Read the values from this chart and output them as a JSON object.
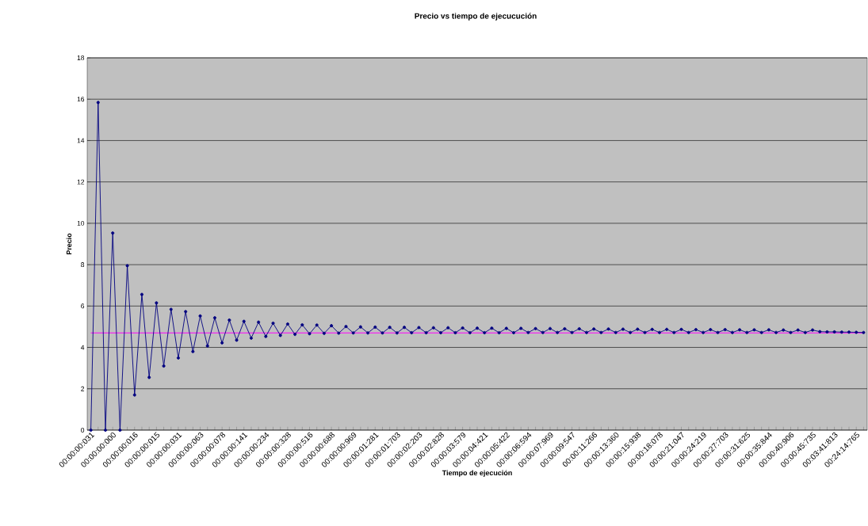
{
  "chart_data": {
    "type": "line",
    "title": "Precio vs tiempo de ejecucución",
    "xlabel": "Tiempo de ejecución",
    "ylabel": "Precio",
    "categories": [
      "00:00:00:031",
      null,
      null,
      "00:00:00:000",
      null,
      null,
      "00:00:00:016",
      null,
      null,
      "00:00:00:015",
      null,
      null,
      "00:00:00:031",
      null,
      null,
      "00:00:00:063",
      null,
      null,
      "00:00:00:078",
      null,
      null,
      "00:00:00:141",
      null,
      null,
      "00:00:00:234",
      null,
      null,
      "00:00:00:328",
      null,
      null,
      "00:00:00:516",
      null,
      null,
      "00:00:00:688",
      null,
      null,
      "00:00:00:969",
      null,
      null,
      "00:00:01:281",
      null,
      null,
      "00:00:01:703",
      null,
      null,
      "00:00:02:203",
      null,
      null,
      "00:00:02:828",
      null,
      null,
      "00:00:03:579",
      null,
      null,
      "00:00:04:421",
      null,
      null,
      "00:00:05:422",
      null,
      null,
      "00:00:06:594",
      null,
      null,
      "00:00:07:969",
      null,
      null,
      "00:00:09:547",
      null,
      null,
      "00:00:11:266",
      null,
      null,
      "00:00:13:360",
      null,
      null,
      "00:00:15:938",
      null,
      null,
      "00:00:18:078",
      null,
      null,
      "00:00:21:047",
      null,
      null,
      "00:00:24:219",
      null,
      null,
      "00:00:27:703",
      null,
      null,
      "00:00:31:625",
      null,
      null,
      "00:00:35:844",
      null,
      null,
      "00:00:40:906",
      null,
      null,
      "00:00:45:735",
      null,
      null,
      "00:03:41:813",
      null,
      null,
      "00:24:14:765",
      null
    ],
    "series": [
      {
        "color": "#000080",
        "values": [
          0,
          15.84,
          0,
          9.53,
          0,
          7.95,
          1.7,
          6.56,
          2.55,
          6.15,
          3.1,
          5.84,
          3.49,
          5.73,
          3.8,
          5.52,
          4.07,
          5.43,
          4.22,
          5.32,
          4.35,
          5.26,
          4.45,
          5.22,
          4.53,
          5.17,
          4.58,
          5.13,
          4.63,
          5.09,
          4.66,
          5.08,
          4.68,
          5.05,
          4.69,
          5.01,
          4.7,
          4.99,
          4.7,
          4.98,
          4.7,
          4.97,
          4.7,
          4.97,
          4.71,
          4.96,
          4.71,
          4.95,
          4.71,
          4.95,
          4.71,
          4.94,
          4.71,
          4.93,
          4.71,
          4.93,
          4.71,
          4.92,
          4.71,
          4.92,
          4.72,
          4.91,
          4.72,
          4.91,
          4.72,
          4.9,
          4.72,
          4.9,
          4.72,
          4.89,
          4.72,
          4.89,
          4.72,
          4.88,
          4.72,
          4.88,
          4.72,
          4.87,
          4.72,
          4.87,
          4.72,
          4.87,
          4.72,
          4.86,
          4.72,
          4.86,
          4.72,
          4.86,
          4.72,
          4.85,
          4.72,
          4.85,
          4.72,
          4.85,
          4.72,
          4.84,
          4.72,
          4.84,
          4.72,
          4.84,
          4.76,
          4.75,
          4.75,
          4.74,
          4.74,
          4.73,
          4.72
        ]
      }
    ],
    "ylim": [
      0,
      18
    ],
    "yticks": [
      0,
      2,
      4,
      6,
      8,
      10,
      12,
      14,
      16,
      18
    ],
    "grid": "y",
    "marker": "circle",
    "ref_lines": [
      {
        "axis": "y",
        "value": 4.7,
        "color": "#ff00ff"
      }
    ]
  }
}
